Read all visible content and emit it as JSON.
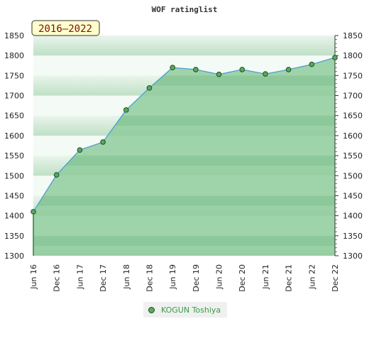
{
  "chart_data": {
    "type": "area",
    "title": "WOF ratinglist",
    "badge": "2016–2022",
    "categories": [
      "Jun 16",
      "Dec 16",
      "Jun 17",
      "Dec 17",
      "Jun 18",
      "Dec 18",
      "Jun 19",
      "Dec 19",
      "Jun 20",
      "Dec 20",
      "Jun 21",
      "Dec 21",
      "Jun 22",
      "Dec 22"
    ],
    "series": [
      {
        "name": "KOGUN Toshiya",
        "values": [
          1410,
          1502,
          1564,
          1584,
          1664,
          1719,
          1770,
          1765,
          1753,
          1765,
          1754,
          1765,
          1778,
          1795
        ]
      }
    ],
    "ylim": [
      1300,
      1850
    ],
    "yticks": [
      1300,
      1350,
      1400,
      1450,
      1500,
      1550,
      1600,
      1650,
      1700,
      1750,
      1800,
      1850
    ],
    "grid": true,
    "legend_position": "bottom",
    "colors": {
      "fill": "#8fcb9c",
      "line": "#4aa0cf",
      "marker": "#59a85f",
      "marker_edge": "#1e4d22",
      "badge_bg": "#ffffcc"
    }
  }
}
